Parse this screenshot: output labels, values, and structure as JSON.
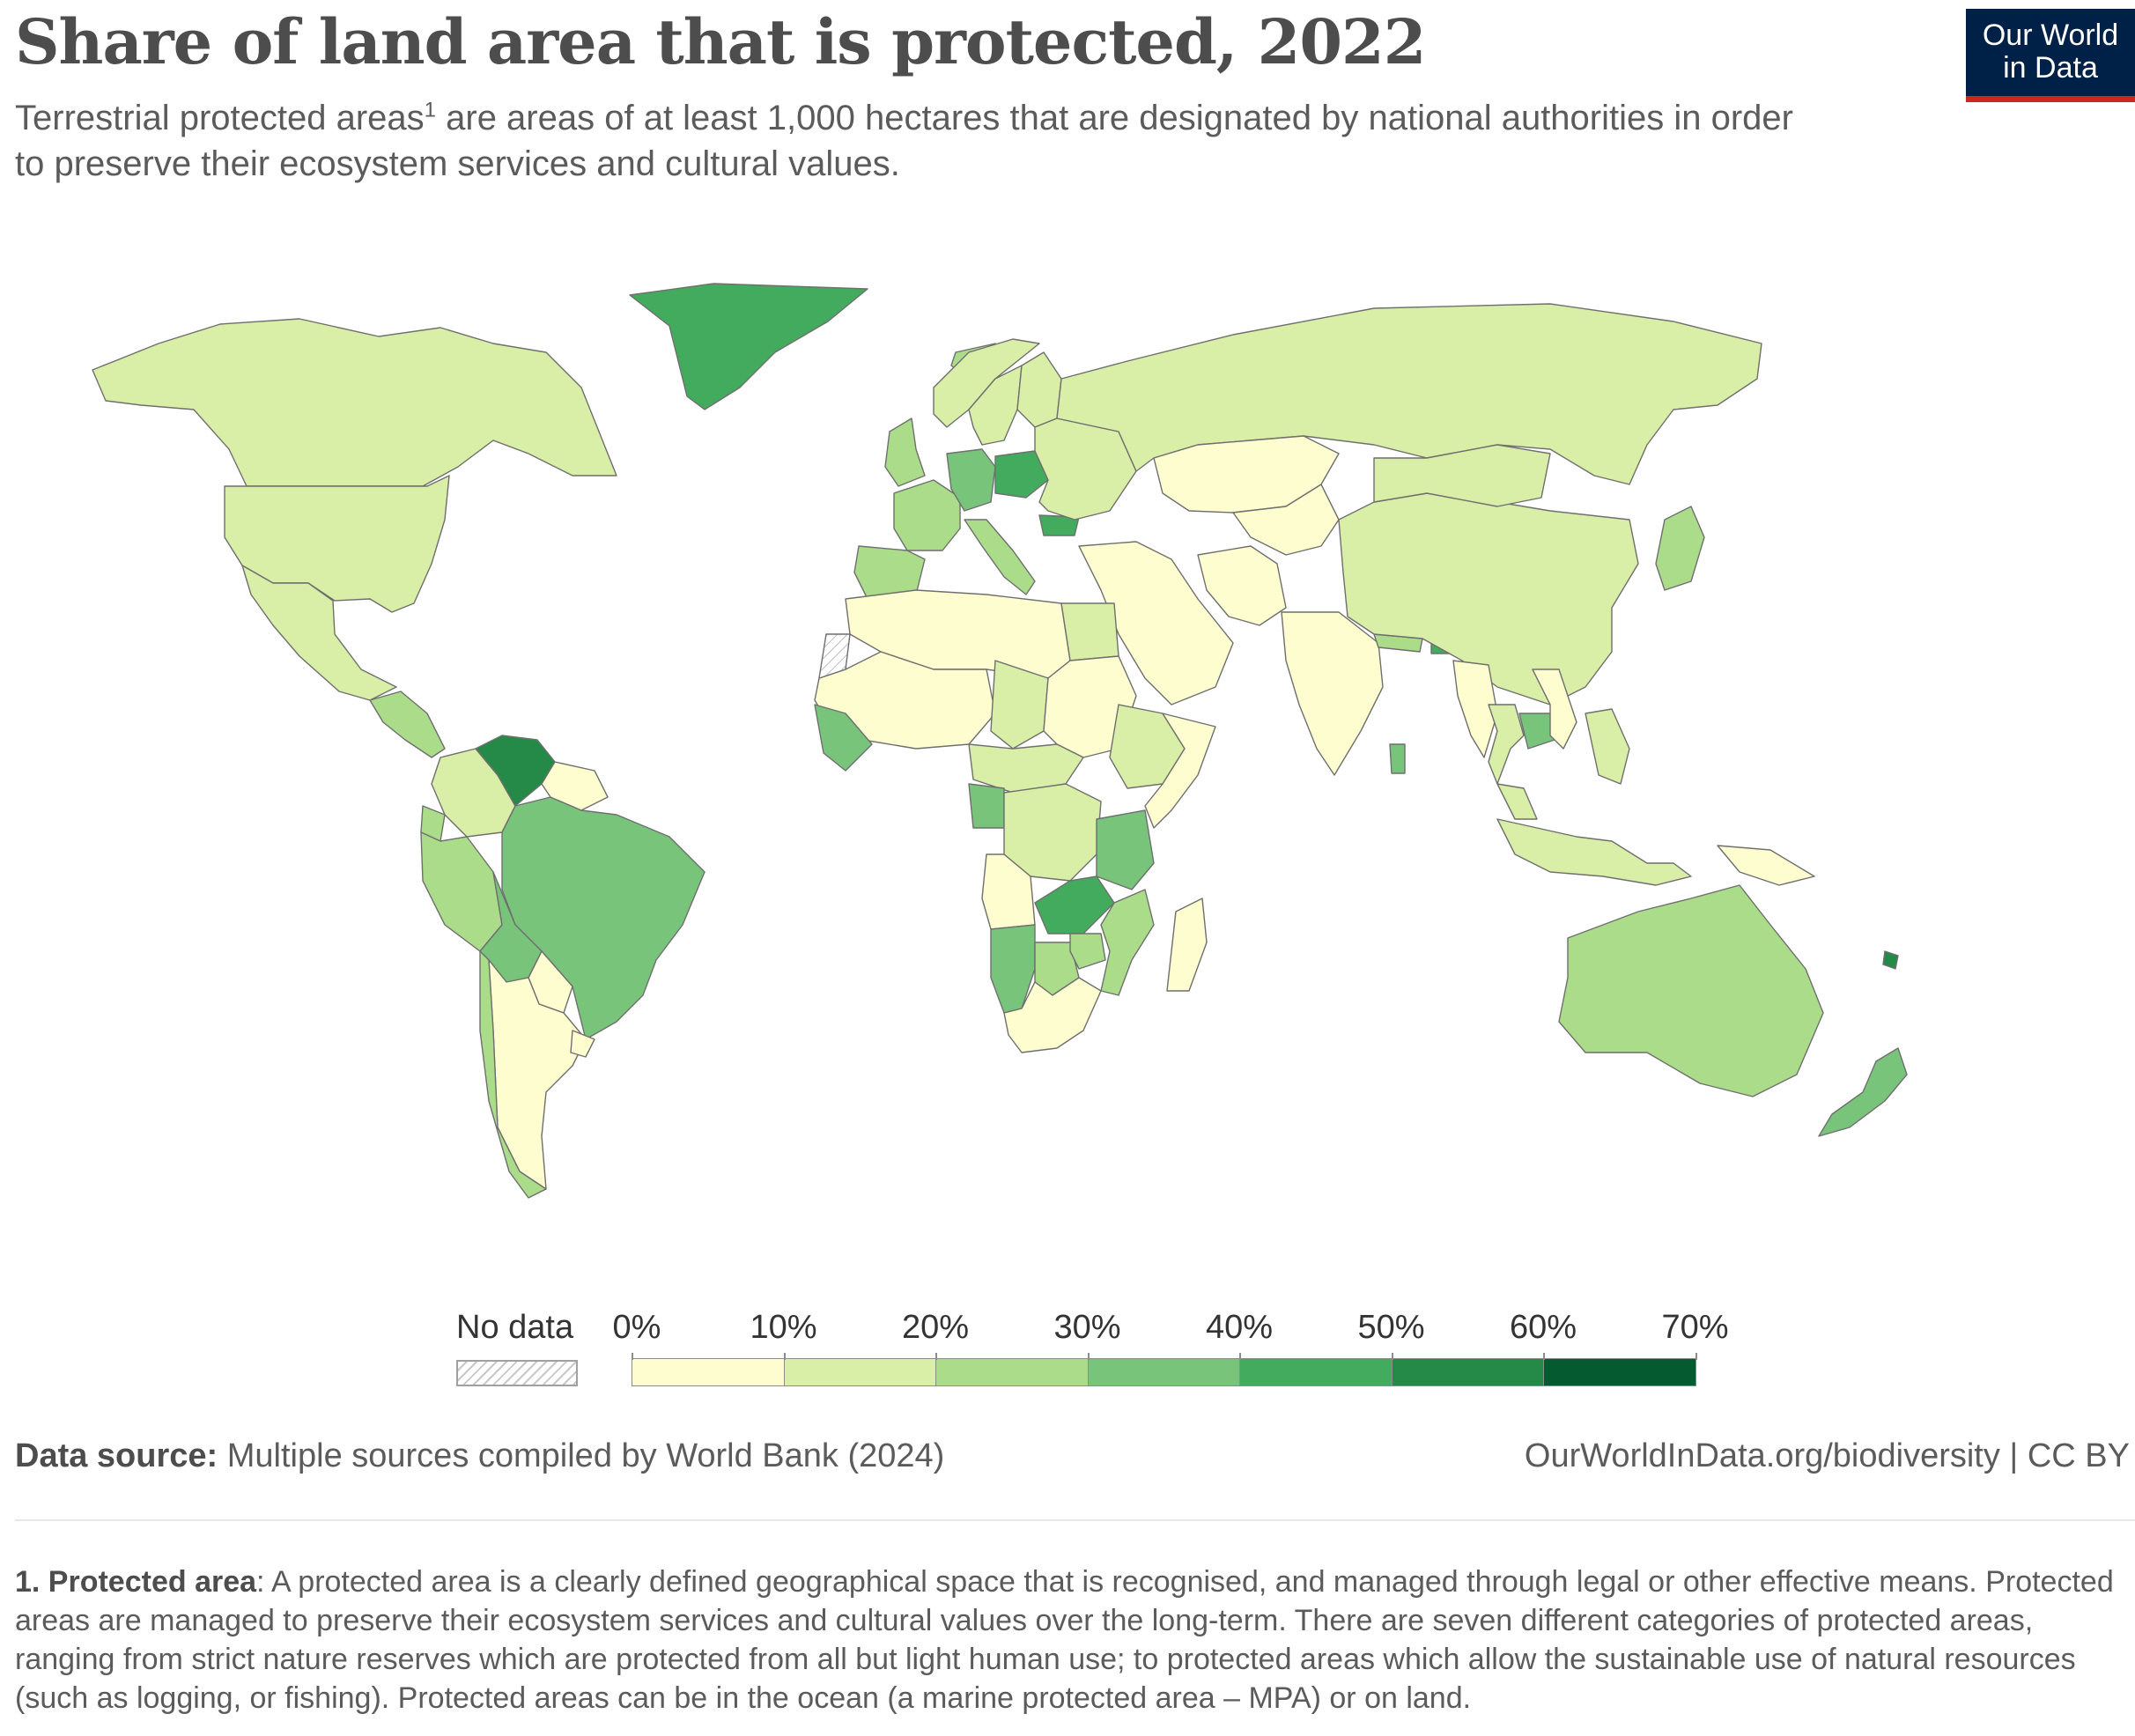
{
  "header": {
    "title": "Share of land area that is protected, 2022",
    "subtitle_before_sup": "Terrestrial protected areas",
    "subtitle_sup": "1",
    "subtitle_after_sup": " are areas of at least 1,000 hectares that are designated by national authorities in order to preserve their ecosystem services and cultural values."
  },
  "logo": {
    "line1": "Our World",
    "line2": "in Data",
    "bg_color": "#002147",
    "accent_color": "#ce261e"
  },
  "legend": {
    "no_data_label": "No data",
    "ticks": [
      "0%",
      "10%",
      "20%",
      "30%",
      "40%",
      "50%",
      "60%",
      "70%"
    ],
    "bins": [
      {
        "from": 0,
        "to": 10,
        "color": "#fefdd0"
      },
      {
        "from": 10,
        "to": 20,
        "color": "#d9eea7"
      },
      {
        "from": 20,
        "to": 30,
        "color": "#abdc8a"
      },
      {
        "from": 30,
        "to": 40,
        "color": "#79c47b"
      },
      {
        "from": 40,
        "to": 50,
        "color": "#42ab5d"
      },
      {
        "from": 50,
        "to": 60,
        "color": "#258a48"
      },
      {
        "from": 60,
        "to": 70,
        "color": "#055a2f"
      }
    ]
  },
  "map": {
    "unit": "%",
    "regions": [
      {
        "name": "Canada",
        "value": 12
      },
      {
        "name": "United States",
        "value": 13
      },
      {
        "name": "Greenland",
        "value": 45
      },
      {
        "name": "Mexico",
        "value": 14
      },
      {
        "name": "Central America",
        "value": 25
      },
      {
        "name": "Colombia",
        "value": 15
      },
      {
        "name": "Venezuela",
        "value": 57
      },
      {
        "name": "Ecuador",
        "value": 22
      },
      {
        "name": "Peru",
        "value": 22
      },
      {
        "name": "Brazil",
        "value": 30
      },
      {
        "name": "Bolivia",
        "value": 31
      },
      {
        "name": "Paraguay",
        "value": 7
      },
      {
        "name": "Argentina",
        "value": 9
      },
      {
        "name": "Chile",
        "value": 21
      },
      {
        "name": "Uruguay",
        "value": 1
      },
      {
        "name": "Guyana",
        "value": 9
      },
      {
        "name": "Iceland",
        "value": 22
      },
      {
        "name": "United Kingdom",
        "value": 28
      },
      {
        "name": "Norway",
        "value": 17
      },
      {
        "name": "Sweden",
        "value": 15
      },
      {
        "name": "Finland",
        "value": 13
      },
      {
        "name": "France",
        "value": 28
      },
      {
        "name": "Spain",
        "value": 28
      },
      {
        "name": "Germany",
        "value": 38
      },
      {
        "name": "Poland",
        "value": 40
      },
      {
        "name": "Italy",
        "value": 21
      },
      {
        "name": "Bulgaria",
        "value": 41
      },
      {
        "name": "Eastern Europe",
        "value": 15
      },
      {
        "name": "Russia",
        "value": 12
      },
      {
        "name": "Kazakhstan",
        "value": 4
      },
      {
        "name": "Middle East",
        "value": 4
      },
      {
        "name": "Iran",
        "value": 7
      },
      {
        "name": "Central Asia",
        "value": 5
      },
      {
        "name": "India",
        "value": 7
      },
      {
        "name": "Nepal",
        "value": 24
      },
      {
        "name": "Bhutan",
        "value": 49
      },
      {
        "name": "Sri Lanka",
        "value": 30
      },
      {
        "name": "China",
        "value": 16
      },
      {
        "name": "Mongolia",
        "value": 19
      },
      {
        "name": "Japan",
        "value": 29
      },
      {
        "name": "Myanmar",
        "value": 7
      },
      {
        "name": "Thailand",
        "value": 19
      },
      {
        "name": "Cambodia",
        "value": 38
      },
      {
        "name": "Vietnam",
        "value": 8
      },
      {
        "name": "Malaysia",
        "value": 15
      },
      {
        "name": "Indonesia",
        "value": 12
      },
      {
        "name": "Philippines",
        "value": 15
      },
      {
        "name": "Papua New Guinea",
        "value": 3
      },
      {
        "name": "Australia",
        "value": 22
      },
      {
        "name": "New Zealand",
        "value": 32
      },
      {
        "name": "New Caledonia",
        "value": 55
      },
      {
        "name": "North Africa",
        "value": 4
      },
      {
        "name": "Egypt",
        "value": 13
      },
      {
        "name": "Sahel",
        "value": 5
      },
      {
        "name": "Chad",
        "value": 18
      },
      {
        "name": "Sudan",
        "value": 4
      },
      {
        "name": "Central African Republic",
        "value": 18
      },
      {
        "name": "Ethiopia",
        "value": 18
      },
      {
        "name": "Somalia",
        "value": 1
      },
      {
        "name": "Guinea",
        "value": 34
      },
      {
        "name": "Gabon",
        "value": 30
      },
      {
        "name": "DR Congo",
        "value": 14
      },
      {
        "name": "Tanzania",
        "value": 38
      },
      {
        "name": "Angola",
        "value": 7
      },
      {
        "name": "Zambia",
        "value": 41
      },
      {
        "name": "Namibia",
        "value": 37
      },
      {
        "name": "Botswana",
        "value": 29
      },
      {
        "name": "Zimbabwe",
        "value": 27
      },
      {
        "name": "Mozambique",
        "value": 25
      },
      {
        "name": "South Africa",
        "value": 9
      },
      {
        "name": "Madagascar",
        "value": 8
      },
      {
        "name": "Western Sahara",
        "value": null
      }
    ]
  },
  "footer": {
    "source_label": "Data source:",
    "source_text": " Multiple sources compiled by World Bank (2024)",
    "url_text": "OurWorldInData.org/biodiversity | CC BY"
  },
  "note": {
    "label": "1. Protected area",
    "text": ": A protected area is a clearly defined geographical space that is recognised, and managed through legal or other effective means. Protected areas are managed to preserve their ecosystem services and cultural values over the long-term. There are seven different categories of protected areas, ranging from strict nature reserves which are protected from all but light human use; to protected areas which allow the sustainable use of natural resources (such as logging, or fishing). Protected areas can be in the ocean (a marine protected area – MPA) or on land."
  }
}
